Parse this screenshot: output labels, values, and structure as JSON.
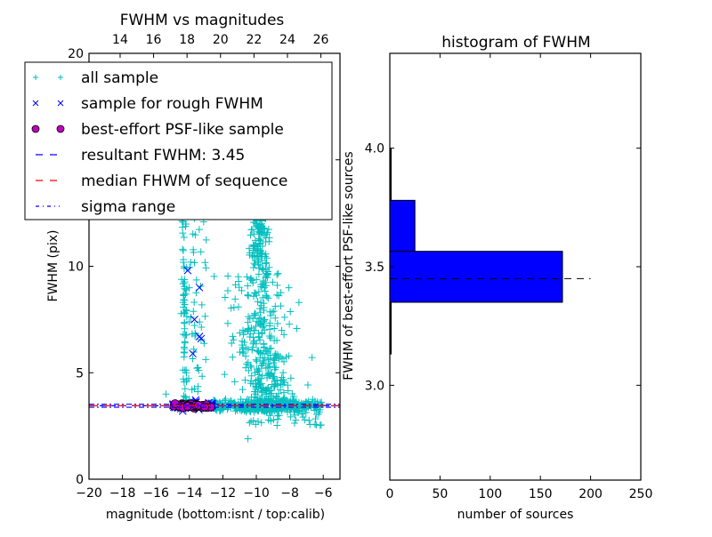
{
  "chart_data": [
    {
      "type": "scatter",
      "title": "FWHM vs magnitudes",
      "xlabel": "magnitude (bottom:isnt / top:calib)",
      "ylabel": "FWHM (pix)",
      "xlim": [
        -20,
        -5
      ],
      "ylim": [
        0,
        20
      ],
      "x_ticks": [
        "−20",
        "−18",
        "−16",
        "−14",
        "−12",
        "−10",
        "−8",
        "−6"
      ],
      "x_tick_values": [
        -20,
        -18,
        -16,
        -14,
        -12,
        -10,
        -8,
        -6
      ],
      "y_ticks": [
        "0",
        "5",
        "10",
        "15",
        "20"
      ],
      "y_tick_values": [
        0,
        5,
        10,
        15,
        20
      ],
      "top_axis": {
        "ticks": [
          "14",
          "16",
          "18",
          "20",
          "22",
          "24",
          "26"
        ],
        "tick_values": [
          14,
          16,
          18,
          20,
          22,
          24,
          26
        ],
        "offset_from_bottom": 32.14
      },
      "legend": {
        "placement": "upper-left",
        "entries": [
          {
            "label": "all sample",
            "marker": "plus",
            "color": "#00bfbf"
          },
          {
            "label": "sample for rough FWHM",
            "marker": "x",
            "color": "#0000ff"
          },
          {
            "label": "best-effort PSF-like sample",
            "marker": "circle",
            "color": "#bf00bf"
          },
          {
            "label": "resultant FWHM: 3.45",
            "marker": "dashed",
            "color": "#0000ff"
          },
          {
            "label": "median FHWM of sequence",
            "marker": "dashed",
            "color": "#ff0000"
          },
          {
            "label": "sigma range",
            "marker": "dashdot",
            "color": "#0000ff"
          }
        ]
      },
      "series": [
        {
          "name": "all sample",
          "color": "#00bfbf",
          "approx_points": 1200,
          "description": "dense cloud mainly between magnitude -11 and -6, FWHM 2-20, with vertical strands at magnitude ~-14.3 and ~-13.5"
        },
        {
          "name": "sample for rough FWHM",
          "color": "#0000ff",
          "points": [
            [
              -14.1,
              9.8
            ],
            [
              -13.4,
              9.0
            ],
            [
              -13.7,
              7.5
            ],
            [
              -13.3,
              6.6
            ],
            [
              -13.4,
              6.7
            ],
            [
              -13.8,
              5.9
            ],
            [
              -14.4,
              3.2
            ]
          ]
        },
        {
          "name": "best-effort PSF-like sample",
          "color": "#bf00bf",
          "x_range": [
            -15.0,
            -12.7
          ],
          "y": 3.45
        }
      ],
      "hlines": [
        {
          "name": "resultant FWHM",
          "y": 3.45,
          "color": "#0000ff",
          "style": "dashed"
        },
        {
          "name": "median FHWM of sequence",
          "y": 3.45,
          "color": "#ff0000",
          "style": "dashed"
        },
        {
          "name": "sigma range upper",
          "y": 3.52,
          "color": "#0000ff",
          "style": "dashdot"
        },
        {
          "name": "sigma range lower",
          "y": 3.38,
          "color": "#0000ff",
          "style": "dashdot"
        }
      ]
    },
    {
      "type": "bar",
      "orientation": "horizontal",
      "title": "histogram of FWHM",
      "xlabel": "number of sources",
      "ylabel": "FWHM of best-effort PSF-like sources",
      "xlim": [
        0,
        250
      ],
      "ylim": [
        2.6,
        4.4
      ],
      "x_ticks": [
        "0",
        "50",
        "100",
        "150",
        "200",
        "250"
      ],
      "x_tick_values": [
        0,
        50,
        100,
        150,
        200,
        250
      ],
      "y_ticks": [
        "3.0",
        "3.5",
        "4.0"
      ],
      "y_tick_values": [
        3.0,
        3.5,
        4.0
      ],
      "bar_color": "#0000ff",
      "bins": [
        {
          "from": 3.13,
          "to": 3.35,
          "count": 1
        },
        {
          "from": 3.35,
          "to": 3.565,
          "count": 172
        },
        {
          "from": 3.565,
          "to": 3.78,
          "count": 25
        },
        {
          "from": 3.78,
          "to": 4.0,
          "count": 1
        }
      ],
      "hline": {
        "y": 3.45,
        "x_to": 200,
        "color": "#000000",
        "style": "dashed"
      }
    }
  ]
}
